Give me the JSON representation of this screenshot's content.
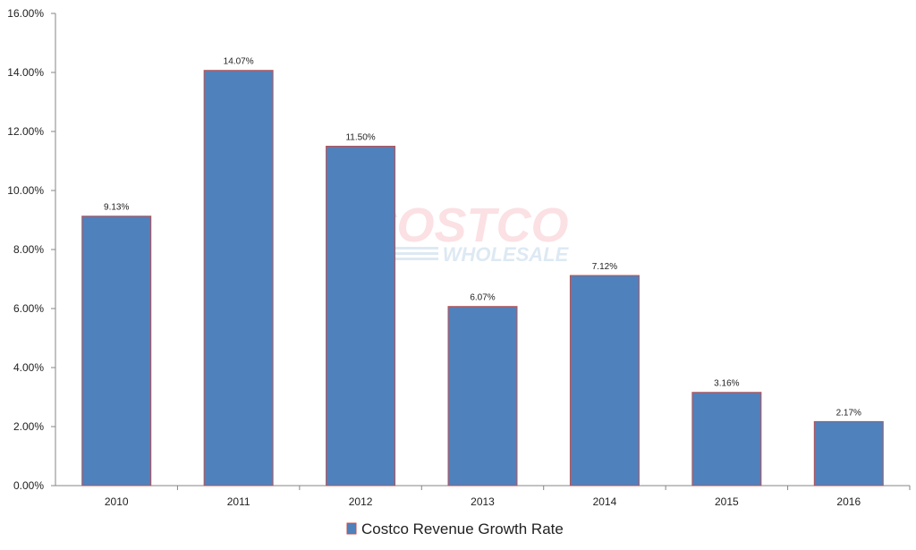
{
  "chart_data": {
    "type": "bar",
    "title": "",
    "xlabel": "",
    "ylabel": "",
    "categories": [
      "2010",
      "2011",
      "2012",
      "2013",
      "2014",
      "2015",
      "2016"
    ],
    "values": [
      9.13,
      14.07,
      11.5,
      6.07,
      7.12,
      3.16,
      2.17
    ],
    "data_labels": [
      "9.13%",
      "14.07%",
      "11.50%",
      "6.07%",
      "7.12%",
      "3.16%",
      "2.17%"
    ],
    "ylim": [
      0,
      16
    ],
    "yticks": [
      0,
      2,
      4,
      6,
      8,
      10,
      12,
      14,
      16
    ],
    "ytick_labels": [
      "0.00%",
      "2.00%",
      "4.00%",
      "6.00%",
      "8.00%",
      "10.00%",
      "12.00%",
      "14.00%",
      "16.00%"
    ],
    "grid": false,
    "legend": {
      "position": "bottom",
      "entries": [
        "Costco Revenue Growth Rate"
      ]
    },
    "watermark": {
      "line1": "COSTCO",
      "line2": "WHOLESALE"
    },
    "colors": {
      "bar_fill": "#4f81bd",
      "bar_stroke": "#c0504d",
      "axis": "#868686"
    }
  }
}
